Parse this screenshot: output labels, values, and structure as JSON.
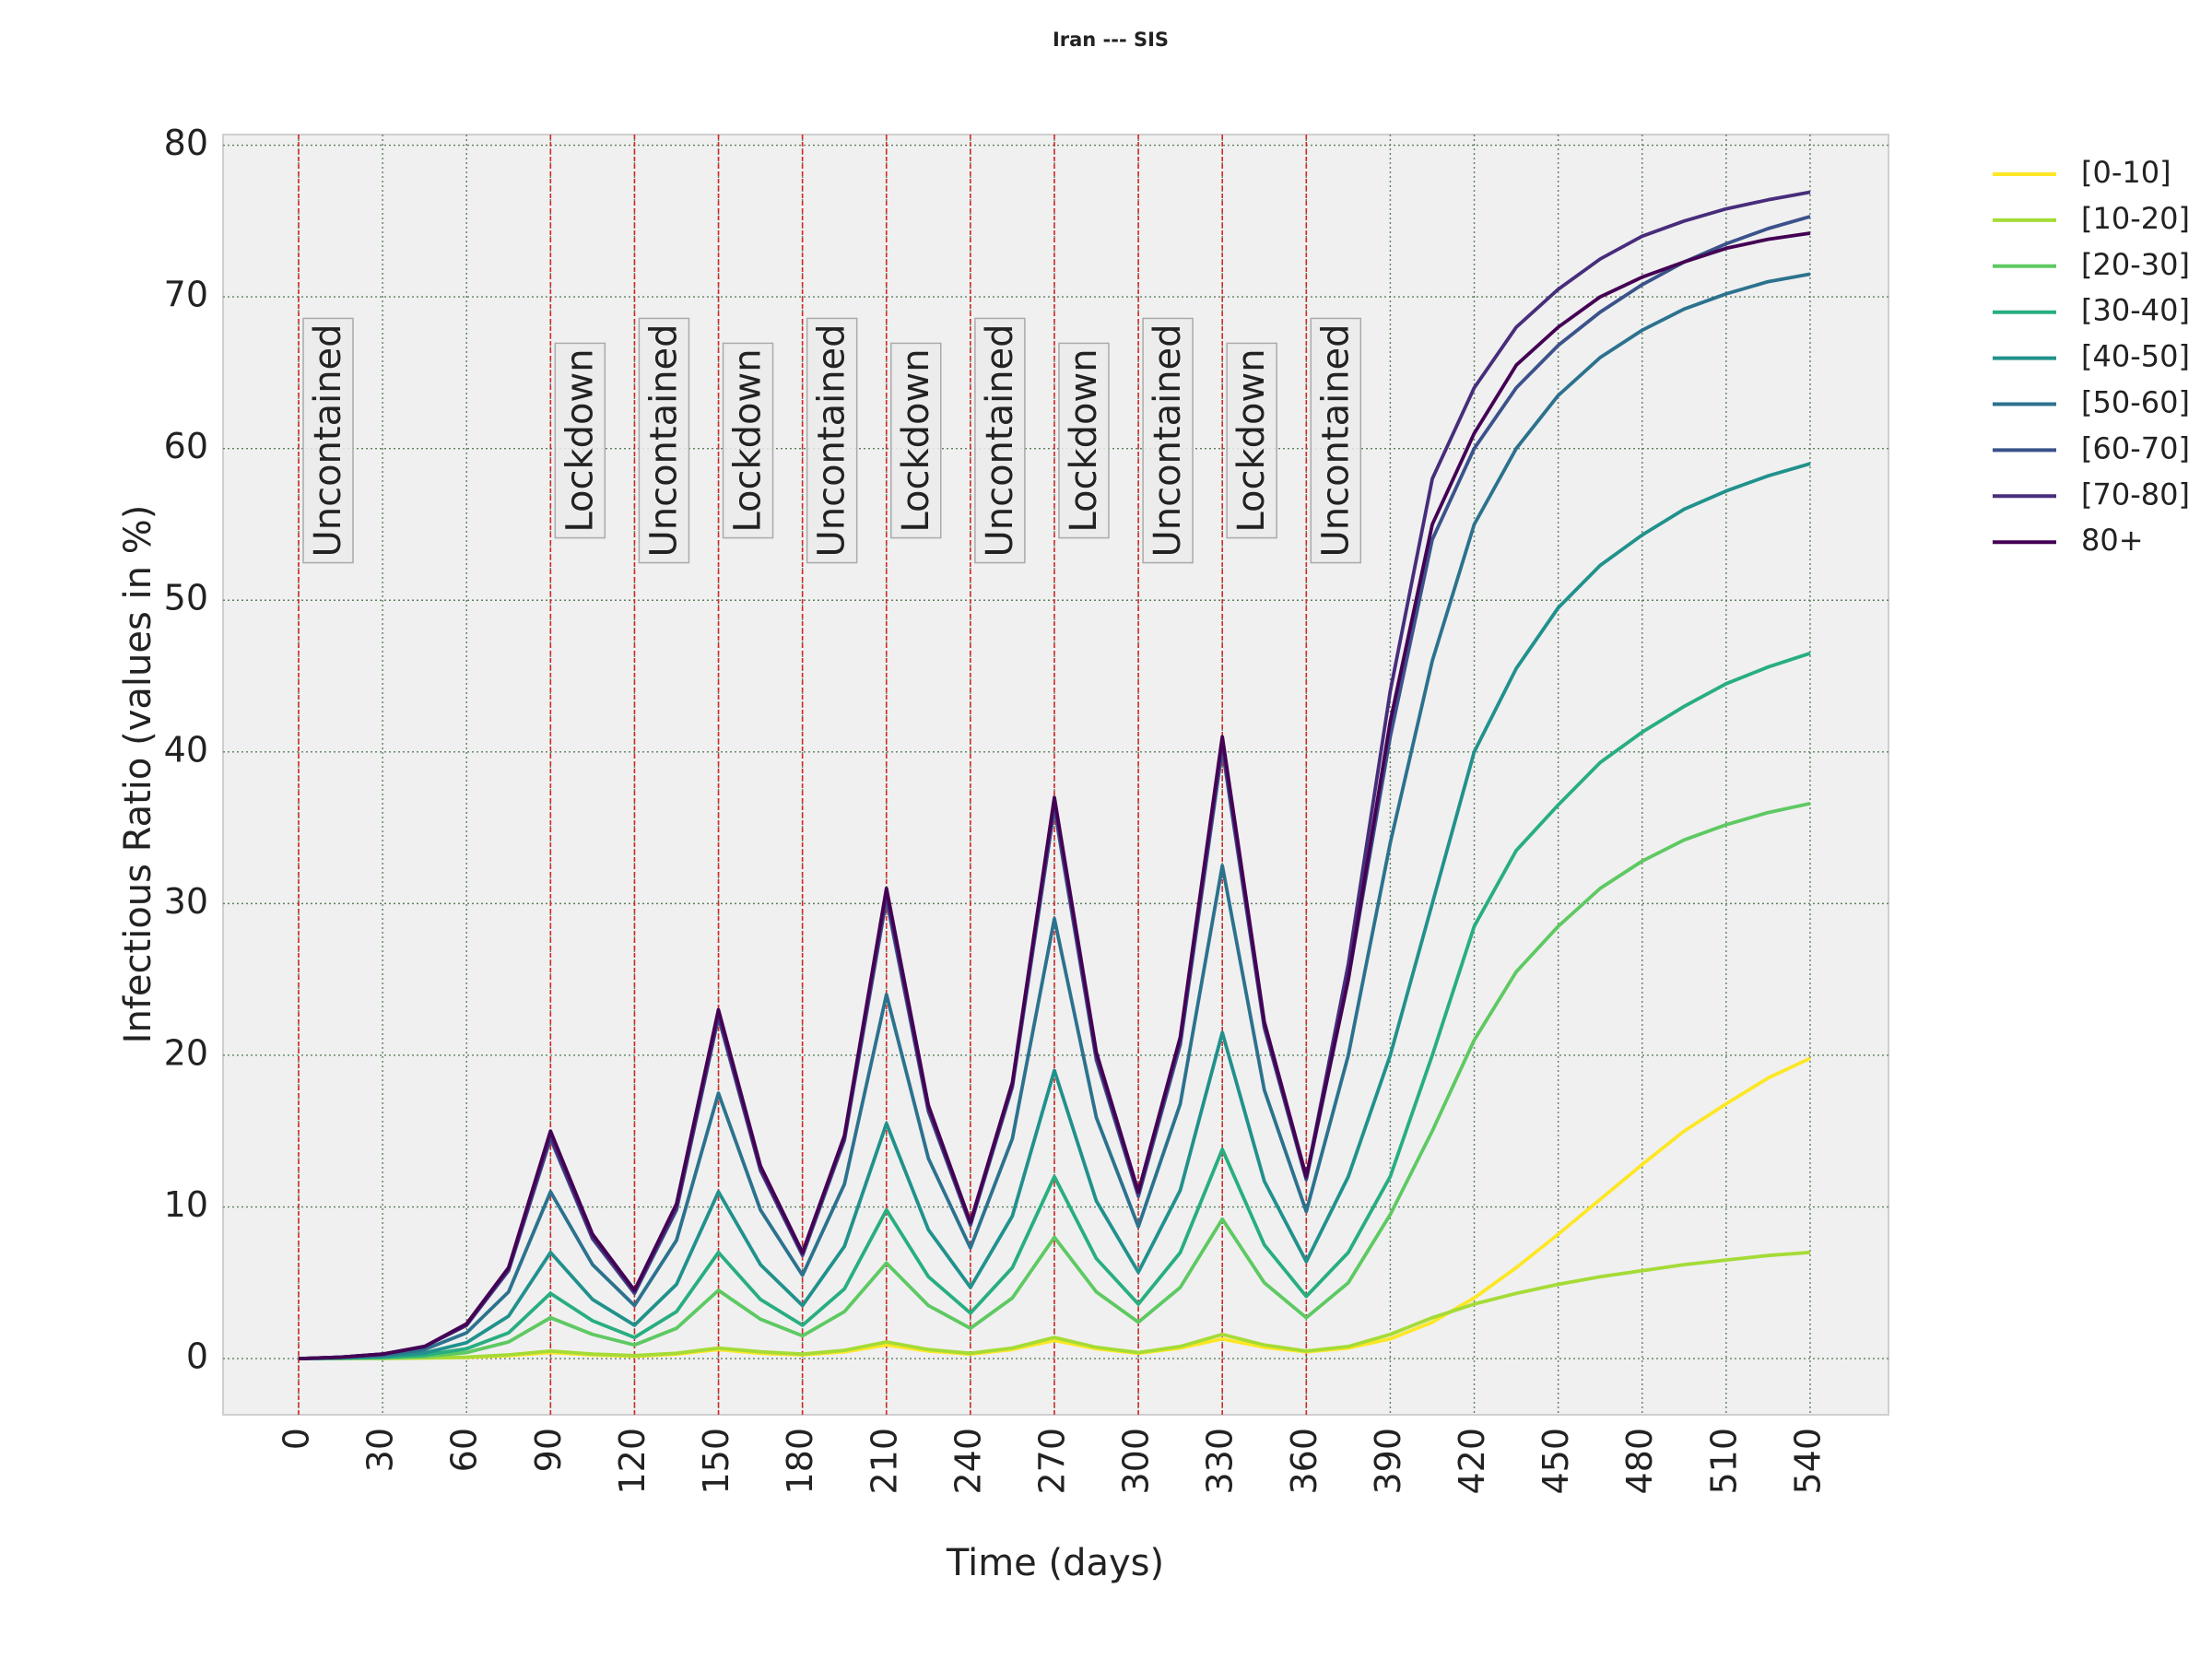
{
  "chart_data": {
    "type": "line",
    "title": "Iran --- SIS",
    "xlabel": "Time (days)",
    "ylabel": "Infectious Ratio (values in %)",
    "x": [
      0,
      15,
      30,
      45,
      60,
      75,
      90,
      105,
      120,
      135,
      150,
      165,
      180,
      195,
      210,
      225,
      240,
      255,
      270,
      285,
      300,
      315,
      330,
      345,
      360,
      375,
      390,
      405,
      420,
      435,
      450,
      465,
      480,
      495,
      510,
      525,
      540
    ],
    "series": [
      {
        "name": "[0-10]",
        "color": "#fde725",
        "values": [
          0,
          0.01,
          0.02,
          0.04,
          0.08,
          0.2,
          0.4,
          0.25,
          0.15,
          0.3,
          0.6,
          0.35,
          0.25,
          0.45,
          0.9,
          0.5,
          0.3,
          0.6,
          1.2,
          0.65,
          0.35,
          0.7,
          1.3,
          0.75,
          0.45,
          0.7,
          1.3,
          2.4,
          4,
          6,
          8.2,
          10.5,
          12.8,
          15,
          16.8,
          18.5,
          19.8
        ]
      },
      {
        "name": "[10-20]",
        "color": "#a5db36",
        "values": [
          0,
          0.01,
          0.02,
          0.05,
          0.1,
          0.25,
          0.5,
          0.3,
          0.2,
          0.35,
          0.7,
          0.45,
          0.3,
          0.55,
          1.1,
          0.6,
          0.35,
          0.7,
          1.4,
          0.75,
          0.4,
          0.8,
          1.6,
          0.9,
          0.5,
          0.8,
          1.6,
          2.7,
          3.6,
          4.3,
          4.9,
          5.4,
          5.8,
          6.2,
          6.5,
          6.8,
          7.0
        ]
      },
      {
        "name": "[20-30]",
        "color": "#5ec962",
        "values": [
          0,
          0.02,
          0.05,
          0.14,
          0.4,
          1.1,
          2.7,
          1.6,
          0.9,
          2.0,
          4.5,
          2.6,
          1.5,
          3.1,
          6.3,
          3.5,
          2,
          4,
          8,
          4.4,
          2.4,
          4.7,
          9.2,
          5,
          2.7,
          5,
          9.5,
          15,
          21,
          25.5,
          28.5,
          31,
          32.8,
          34.2,
          35.2,
          36,
          36.6
        ]
      },
      {
        "name": "[30-40]",
        "color": "#28ae80",
        "values": [
          0,
          0.03,
          0.09,
          0.23,
          0.65,
          1.7,
          4.3,
          2.5,
          1.4,
          3.1,
          7,
          3.9,
          2.2,
          4.6,
          9.8,
          5.4,
          3,
          6,
          12,
          6.6,
          3.6,
          7,
          13.8,
          7.5,
          4.1,
          7,
          12,
          20,
          28.5,
          33.5,
          36.5,
          39.3,
          41.3,
          43,
          44.5,
          45.6,
          46.5
        ]
      },
      {
        "name": "[40-50]",
        "color": "#21918c",
        "values": [
          0,
          0.05,
          0.14,
          0.37,
          1.05,
          2.8,
          7,
          3.9,
          2.2,
          4.9,
          11,
          6.2,
          3.5,
          7.4,
          15.5,
          8.5,
          4.7,
          9.4,
          19,
          10.4,
          5.7,
          11.1,
          21.5,
          11.7,
          6.4,
          12,
          20,
          30,
          40,
          45.5,
          49.5,
          52.3,
          54.3,
          56,
          57.2,
          58.2,
          59
        ]
      },
      {
        "name": "[50-60]",
        "color": "#2c728e",
        "values": [
          0,
          0.08,
          0.22,
          0.6,
          1.7,
          4.4,
          11,
          6.2,
          3.5,
          7.8,
          17.5,
          9.8,
          5.5,
          11.5,
          24,
          13.2,
          7.3,
          14.5,
          29,
          15.9,
          8.7,
          16.8,
          32.5,
          17.7,
          9.7,
          20,
          34,
          46,
          55,
          60,
          63.5,
          66,
          67.8,
          69.2,
          70.2,
          71,
          71.5
        ]
      },
      {
        "name": "[60-70]",
        "color": "#3b528b",
        "values": [
          0,
          0.1,
          0.3,
          0.8,
          2.2,
          5.8,
          14.5,
          7.9,
          4.3,
          9.8,
          22.5,
          12.4,
          6.8,
          14.4,
          30.3,
          16.3,
          8.8,
          17.9,
          36.3,
          19.7,
          10.7,
          20.7,
          40.2,
          21.8,
          11.8,
          25,
          41,
          54,
          60,
          64,
          66.8,
          69,
          70.8,
          72.3,
          73.5,
          74.5,
          75.3
        ]
      },
      {
        "name": "[70-80]",
        "color": "#472d7b",
        "values": [
          0,
          0.1,
          0.3,
          0.8,
          2.2,
          5.9,
          14.7,
          8.0,
          4.4,
          10,
          22.7,
          12.5,
          6.9,
          14.6,
          30.7,
          16.5,
          8.9,
          18.1,
          36.8,
          20,
          10.9,
          21.1,
          40.7,
          22,
          11.9,
          26,
          44,
          58,
          64,
          68,
          70.5,
          72.5,
          74,
          75,
          75.8,
          76.4,
          76.9
        ]
      },
      {
        "name": "80+",
        "color": "#440154",
        "values": [
          0,
          0.1,
          0.3,
          0.8,
          2.3,
          6,
          15,
          8.2,
          4.5,
          10.2,
          23,
          12.7,
          7,
          14.7,
          31,
          16.7,
          9,
          18.2,
          37,
          20.2,
          11,
          21.2,
          41,
          22.2,
          12,
          25,
          42,
          55,
          61,
          65.5,
          68,
          70,
          71.3,
          72.3,
          73.2,
          73.8,
          74.2
        ]
      }
    ],
    "phases": [
      {
        "x": 0,
        "label": "Uncontained"
      },
      {
        "x": 90,
        "label": "Lockdown"
      },
      {
        "x": 120,
        "label": "Uncontained"
      },
      {
        "x": 150,
        "label": "Lockdown"
      },
      {
        "x": 180,
        "label": "Uncontained"
      },
      {
        "x": 210,
        "label": "Lockdown"
      },
      {
        "x": 240,
        "label": "Uncontained"
      },
      {
        "x": 270,
        "label": "Lockdown"
      },
      {
        "x": 300,
        "label": "Uncontained"
      },
      {
        "x": 330,
        "label": "Lockdown"
      },
      {
        "x": 360,
        "label": "Uncontained"
      }
    ],
    "phase_line_color": "#d62728",
    "xlim": [
      -27,
      568
    ],
    "ylim": [
      -3.7,
      80.7
    ],
    "xticks": [
      0,
      30,
      60,
      90,
      120,
      150,
      180,
      210,
      240,
      270,
      300,
      330,
      360,
      390,
      420,
      450,
      480,
      510,
      540
    ],
    "yticks": [
      0,
      10,
      20,
      30,
      40,
      50,
      60,
      70,
      80
    ],
    "grid": true,
    "legend": "outside upper right"
  }
}
